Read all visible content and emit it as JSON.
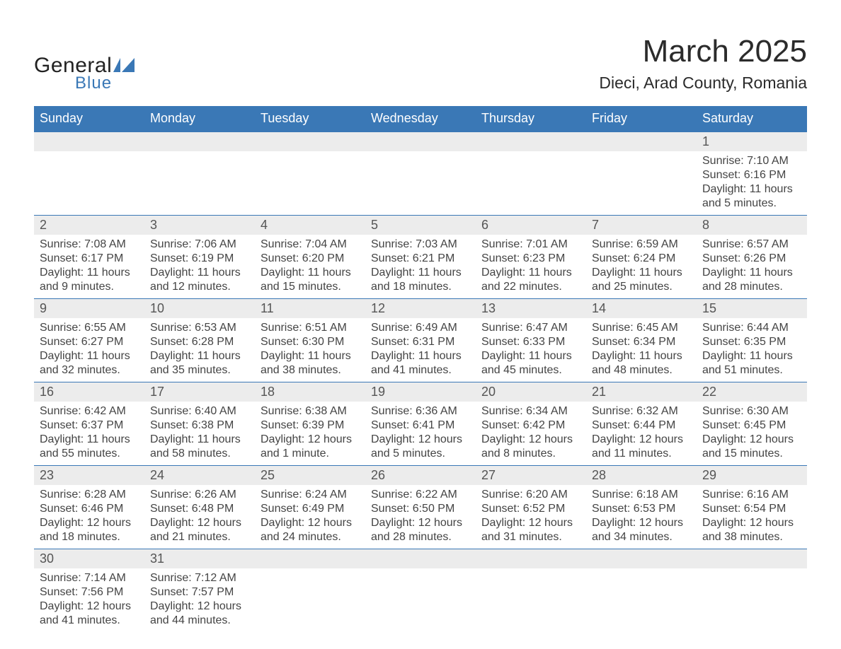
{
  "brand": {
    "text_general": "General",
    "text_blue": "Blue",
    "flag_color": "#3a78b6",
    "text_color_dark": "#222222",
    "text_color_blue": "#3a78b6"
  },
  "header": {
    "month_title": "March 2025",
    "location": "Dieci, Arad County, Romania",
    "title_fontsize": 44,
    "location_fontsize": 23
  },
  "calendar": {
    "type": "table",
    "header_bg": "#3a78b6",
    "header_fg": "#ffffff",
    "daynum_bg": "#ececec",
    "row_border_color": "#3a78b6",
    "body_text_color": "#444444",
    "body_fontsize": 16,
    "days_of_week": [
      "Sunday",
      "Monday",
      "Tuesday",
      "Wednesday",
      "Thursday",
      "Friday",
      "Saturday"
    ],
    "weeks": [
      [
        {
          "n": "",
          "l1": "",
          "l2": "",
          "l3": "",
          "l4": ""
        },
        {
          "n": "",
          "l1": "",
          "l2": "",
          "l3": "",
          "l4": ""
        },
        {
          "n": "",
          "l1": "",
          "l2": "",
          "l3": "",
          "l4": ""
        },
        {
          "n": "",
          "l1": "",
          "l2": "",
          "l3": "",
          "l4": ""
        },
        {
          "n": "",
          "l1": "",
          "l2": "",
          "l3": "",
          "l4": ""
        },
        {
          "n": "",
          "l1": "",
          "l2": "",
          "l3": "",
          "l4": ""
        },
        {
          "n": "1",
          "l1": "Sunrise: 7:10 AM",
          "l2": "Sunset: 6:16 PM",
          "l3": "Daylight: 11 hours",
          "l4": "and 5 minutes."
        }
      ],
      [
        {
          "n": "2",
          "l1": "Sunrise: 7:08 AM",
          "l2": "Sunset: 6:17 PM",
          "l3": "Daylight: 11 hours",
          "l4": "and 9 minutes."
        },
        {
          "n": "3",
          "l1": "Sunrise: 7:06 AM",
          "l2": "Sunset: 6:19 PM",
          "l3": "Daylight: 11 hours",
          "l4": "and 12 minutes."
        },
        {
          "n": "4",
          "l1": "Sunrise: 7:04 AM",
          "l2": "Sunset: 6:20 PM",
          "l3": "Daylight: 11 hours",
          "l4": "and 15 minutes."
        },
        {
          "n": "5",
          "l1": "Sunrise: 7:03 AM",
          "l2": "Sunset: 6:21 PM",
          "l3": "Daylight: 11 hours",
          "l4": "and 18 minutes."
        },
        {
          "n": "6",
          "l1": "Sunrise: 7:01 AM",
          "l2": "Sunset: 6:23 PM",
          "l3": "Daylight: 11 hours",
          "l4": "and 22 minutes."
        },
        {
          "n": "7",
          "l1": "Sunrise: 6:59 AM",
          "l2": "Sunset: 6:24 PM",
          "l3": "Daylight: 11 hours",
          "l4": "and 25 minutes."
        },
        {
          "n": "8",
          "l1": "Sunrise: 6:57 AM",
          "l2": "Sunset: 6:26 PM",
          "l3": "Daylight: 11 hours",
          "l4": "and 28 minutes."
        }
      ],
      [
        {
          "n": "9",
          "l1": "Sunrise: 6:55 AM",
          "l2": "Sunset: 6:27 PM",
          "l3": "Daylight: 11 hours",
          "l4": "and 32 minutes."
        },
        {
          "n": "10",
          "l1": "Sunrise: 6:53 AM",
          "l2": "Sunset: 6:28 PM",
          "l3": "Daylight: 11 hours",
          "l4": "and 35 minutes."
        },
        {
          "n": "11",
          "l1": "Sunrise: 6:51 AM",
          "l2": "Sunset: 6:30 PM",
          "l3": "Daylight: 11 hours",
          "l4": "and 38 minutes."
        },
        {
          "n": "12",
          "l1": "Sunrise: 6:49 AM",
          "l2": "Sunset: 6:31 PM",
          "l3": "Daylight: 11 hours",
          "l4": "and 41 minutes."
        },
        {
          "n": "13",
          "l1": "Sunrise: 6:47 AM",
          "l2": "Sunset: 6:33 PM",
          "l3": "Daylight: 11 hours",
          "l4": "and 45 minutes."
        },
        {
          "n": "14",
          "l1": "Sunrise: 6:45 AM",
          "l2": "Sunset: 6:34 PM",
          "l3": "Daylight: 11 hours",
          "l4": "and 48 minutes."
        },
        {
          "n": "15",
          "l1": "Sunrise: 6:44 AM",
          "l2": "Sunset: 6:35 PM",
          "l3": "Daylight: 11 hours",
          "l4": "and 51 minutes."
        }
      ],
      [
        {
          "n": "16",
          "l1": "Sunrise: 6:42 AM",
          "l2": "Sunset: 6:37 PM",
          "l3": "Daylight: 11 hours",
          "l4": "and 55 minutes."
        },
        {
          "n": "17",
          "l1": "Sunrise: 6:40 AM",
          "l2": "Sunset: 6:38 PM",
          "l3": "Daylight: 11 hours",
          "l4": "and 58 minutes."
        },
        {
          "n": "18",
          "l1": "Sunrise: 6:38 AM",
          "l2": "Sunset: 6:39 PM",
          "l3": "Daylight: 12 hours",
          "l4": "and 1 minute."
        },
        {
          "n": "19",
          "l1": "Sunrise: 6:36 AM",
          "l2": "Sunset: 6:41 PM",
          "l3": "Daylight: 12 hours",
          "l4": "and 5 minutes."
        },
        {
          "n": "20",
          "l1": "Sunrise: 6:34 AM",
          "l2": "Sunset: 6:42 PM",
          "l3": "Daylight: 12 hours",
          "l4": "and 8 minutes."
        },
        {
          "n": "21",
          "l1": "Sunrise: 6:32 AM",
          "l2": "Sunset: 6:44 PM",
          "l3": "Daylight: 12 hours",
          "l4": "and 11 minutes."
        },
        {
          "n": "22",
          "l1": "Sunrise: 6:30 AM",
          "l2": "Sunset: 6:45 PM",
          "l3": "Daylight: 12 hours",
          "l4": "and 15 minutes."
        }
      ],
      [
        {
          "n": "23",
          "l1": "Sunrise: 6:28 AM",
          "l2": "Sunset: 6:46 PM",
          "l3": "Daylight: 12 hours",
          "l4": "and 18 minutes."
        },
        {
          "n": "24",
          "l1": "Sunrise: 6:26 AM",
          "l2": "Sunset: 6:48 PM",
          "l3": "Daylight: 12 hours",
          "l4": "and 21 minutes."
        },
        {
          "n": "25",
          "l1": "Sunrise: 6:24 AM",
          "l2": "Sunset: 6:49 PM",
          "l3": "Daylight: 12 hours",
          "l4": "and 24 minutes."
        },
        {
          "n": "26",
          "l1": "Sunrise: 6:22 AM",
          "l2": "Sunset: 6:50 PM",
          "l3": "Daylight: 12 hours",
          "l4": "and 28 minutes."
        },
        {
          "n": "27",
          "l1": "Sunrise: 6:20 AM",
          "l2": "Sunset: 6:52 PM",
          "l3": "Daylight: 12 hours",
          "l4": "and 31 minutes."
        },
        {
          "n": "28",
          "l1": "Sunrise: 6:18 AM",
          "l2": "Sunset: 6:53 PM",
          "l3": "Daylight: 12 hours",
          "l4": "and 34 minutes."
        },
        {
          "n": "29",
          "l1": "Sunrise: 6:16 AM",
          "l2": "Sunset: 6:54 PM",
          "l3": "Daylight: 12 hours",
          "l4": "and 38 minutes."
        }
      ],
      [
        {
          "n": "30",
          "l1": "Sunrise: 7:14 AM",
          "l2": "Sunset: 7:56 PM",
          "l3": "Daylight: 12 hours",
          "l4": "and 41 minutes."
        },
        {
          "n": "31",
          "l1": "Sunrise: 7:12 AM",
          "l2": "Sunset: 7:57 PM",
          "l3": "Daylight: 12 hours",
          "l4": "and 44 minutes."
        },
        {
          "n": "",
          "l1": "",
          "l2": "",
          "l3": "",
          "l4": ""
        },
        {
          "n": "",
          "l1": "",
          "l2": "",
          "l3": "",
          "l4": ""
        },
        {
          "n": "",
          "l1": "",
          "l2": "",
          "l3": "",
          "l4": ""
        },
        {
          "n": "",
          "l1": "",
          "l2": "",
          "l3": "",
          "l4": ""
        },
        {
          "n": "",
          "l1": "",
          "l2": "",
          "l3": "",
          "l4": ""
        }
      ]
    ]
  }
}
